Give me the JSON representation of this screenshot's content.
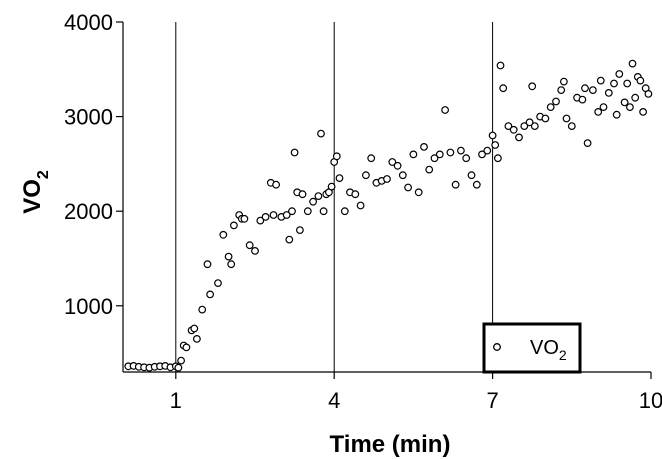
{
  "chart_data": {
    "type": "scatter",
    "xlabel": "Time (min)",
    "ylabel": {
      "main": "VO",
      "subscript": "2"
    },
    "xlim": [
      0,
      10
    ],
    "ylim": [
      300,
      4000
    ],
    "x_ticks": [
      1,
      4,
      7,
      10
    ],
    "y_ticks": [
      1000,
      2000,
      3000,
      4000
    ],
    "vertical_lines": [
      1,
      4,
      7
    ],
    "grid": false,
    "legend": {
      "placement": "bottom-right",
      "label_main": "VO",
      "label_subscript": "2"
    },
    "series": [
      {
        "name": "VO2",
        "marker": "open-circle",
        "points": [
          [
            0.1,
            360
          ],
          [
            0.2,
            365
          ],
          [
            0.3,
            355
          ],
          [
            0.4,
            350
          ],
          [
            0.5,
            345
          ],
          [
            0.6,
            355
          ],
          [
            0.7,
            360
          ],
          [
            0.8,
            365
          ],
          [
            0.9,
            350
          ],
          [
            1.0,
            360
          ],
          [
            1.05,
            345
          ],
          [
            1.1,
            420
          ],
          [
            1.15,
            580
          ],
          [
            1.2,
            560
          ],
          [
            1.3,
            740
          ],
          [
            1.35,
            760
          ],
          [
            1.4,
            650
          ],
          [
            1.5,
            960
          ],
          [
            1.6,
            1440
          ],
          [
            1.65,
            1120
          ],
          [
            1.8,
            1240
          ],
          [
            1.9,
            1750
          ],
          [
            2.0,
            1520
          ],
          [
            2.05,
            1440
          ],
          [
            2.1,
            1850
          ],
          [
            2.2,
            1960
          ],
          [
            2.25,
            1920
          ],
          [
            2.3,
            1920
          ],
          [
            2.4,
            1640
          ],
          [
            2.5,
            1580
          ],
          [
            2.6,
            1900
          ],
          [
            2.7,
            1940
          ],
          [
            2.8,
            2300
          ],
          [
            2.85,
            1960
          ],
          [
            2.9,
            2280
          ],
          [
            3.0,
            1940
          ],
          [
            3.1,
            1960
          ],
          [
            3.15,
            1700
          ],
          [
            3.2,
            2000
          ],
          [
            3.25,
            2620
          ],
          [
            3.3,
            2200
          ],
          [
            3.35,
            1800
          ],
          [
            3.4,
            2180
          ],
          [
            3.5,
            2000
          ],
          [
            3.6,
            2100
          ],
          [
            3.7,
            2160
          ],
          [
            3.75,
            2820
          ],
          [
            3.8,
            2000
          ],
          [
            3.85,
            2180
          ],
          [
            3.9,
            2200
          ],
          [
            3.95,
            2260
          ],
          [
            4.0,
            2520
          ],
          [
            4.05,
            2580
          ],
          [
            4.1,
            2350
          ],
          [
            4.2,
            2000
          ],
          [
            4.3,
            2200
          ],
          [
            4.4,
            2180
          ],
          [
            4.5,
            2060
          ],
          [
            4.6,
            2380
          ],
          [
            4.7,
            2560
          ],
          [
            4.8,
            2300
          ],
          [
            4.9,
            2320
          ],
          [
            5.0,
            2340
          ],
          [
            5.1,
            2520
          ],
          [
            5.2,
            2480
          ],
          [
            5.3,
            2380
          ],
          [
            5.4,
            2250
          ],
          [
            5.5,
            2600
          ],
          [
            5.6,
            2200
          ],
          [
            5.7,
            2680
          ],
          [
            5.8,
            2440
          ],
          [
            5.9,
            2560
          ],
          [
            6.0,
            2600
          ],
          [
            6.1,
            3070
          ],
          [
            6.2,
            2620
          ],
          [
            6.3,
            2280
          ],
          [
            6.4,
            2640
          ],
          [
            6.5,
            2560
          ],
          [
            6.6,
            2380
          ],
          [
            6.7,
            2280
          ],
          [
            6.8,
            2600
          ],
          [
            6.9,
            2640
          ],
          [
            7.0,
            2800
          ],
          [
            7.05,
            2700
          ],
          [
            7.1,
            2560
          ],
          [
            7.15,
            3540
          ],
          [
            7.2,
            3300
          ],
          [
            7.3,
            2900
          ],
          [
            7.4,
            2860
          ],
          [
            7.5,
            2780
          ],
          [
            7.6,
            2900
          ],
          [
            7.7,
            2940
          ],
          [
            7.75,
            3320
          ],
          [
            7.8,
            2900
          ],
          [
            7.9,
            3000
          ],
          [
            8.0,
            2980
          ],
          [
            8.1,
            3100
          ],
          [
            8.2,
            3160
          ],
          [
            8.3,
            3280
          ],
          [
            8.35,
            3370
          ],
          [
            8.4,
            2980
          ],
          [
            8.5,
            2900
          ],
          [
            8.6,
            3200
          ],
          [
            8.7,
            3180
          ],
          [
            8.75,
            3300
          ],
          [
            8.8,
            2720
          ],
          [
            8.9,
            3280
          ],
          [
            9.0,
            3050
          ],
          [
            9.05,
            3380
          ],
          [
            9.1,
            3100
          ],
          [
            9.2,
            3250
          ],
          [
            9.3,
            3350
          ],
          [
            9.35,
            3020
          ],
          [
            9.4,
            3450
          ],
          [
            9.5,
            3150
          ],
          [
            9.55,
            3350
          ],
          [
            9.6,
            3100
          ],
          [
            9.65,
            3560
          ],
          [
            9.7,
            3200
          ],
          [
            9.75,
            3420
          ],
          [
            9.8,
            3380
          ],
          [
            9.85,
            3050
          ],
          [
            9.9,
            3300
          ],
          [
            9.95,
            3240
          ]
        ]
      }
    ]
  }
}
